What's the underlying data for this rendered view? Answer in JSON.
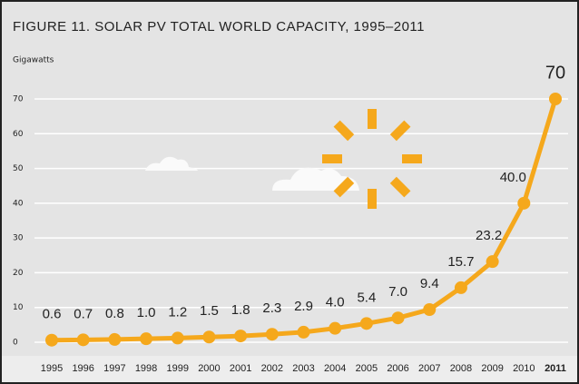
{
  "chart_data": {
    "type": "line",
    "title": "FIGURE 11. SOLAR PV TOTAL WORLD CAPACITY, 1995–2011",
    "y_label": "Gigawatts",
    "categories": [
      "1995",
      "1996",
      "1997",
      "1998",
      "1999",
      "2000",
      "2001",
      "2002",
      "2003",
      "2004",
      "2005",
      "2006",
      "2007",
      "2008",
      "2009",
      "2010",
      "2011"
    ],
    "values": [
      0.6,
      0.7,
      0.8,
      1.0,
      1.2,
      1.5,
      1.8,
      2.3,
      2.9,
      4.0,
      5.4,
      7.0,
      9.4,
      15.7,
      23.2,
      40.0,
      70
    ],
    "value_labels": [
      "0.6",
      "0.7",
      "0.8",
      "1.0",
      "1.2",
      "1.5",
      "1.8",
      "2.3",
      "2.9",
      "4.0",
      "5.4",
      "7.0",
      "9.4",
      "15.7",
      "23.2",
      "40.0",
      "70"
    ],
    "color": "#f5a81c",
    "ylim": [
      0,
      70
    ],
    "yticks": [
      0,
      10,
      20,
      30,
      40,
      50,
      60,
      70
    ],
    "grid": true
  }
}
